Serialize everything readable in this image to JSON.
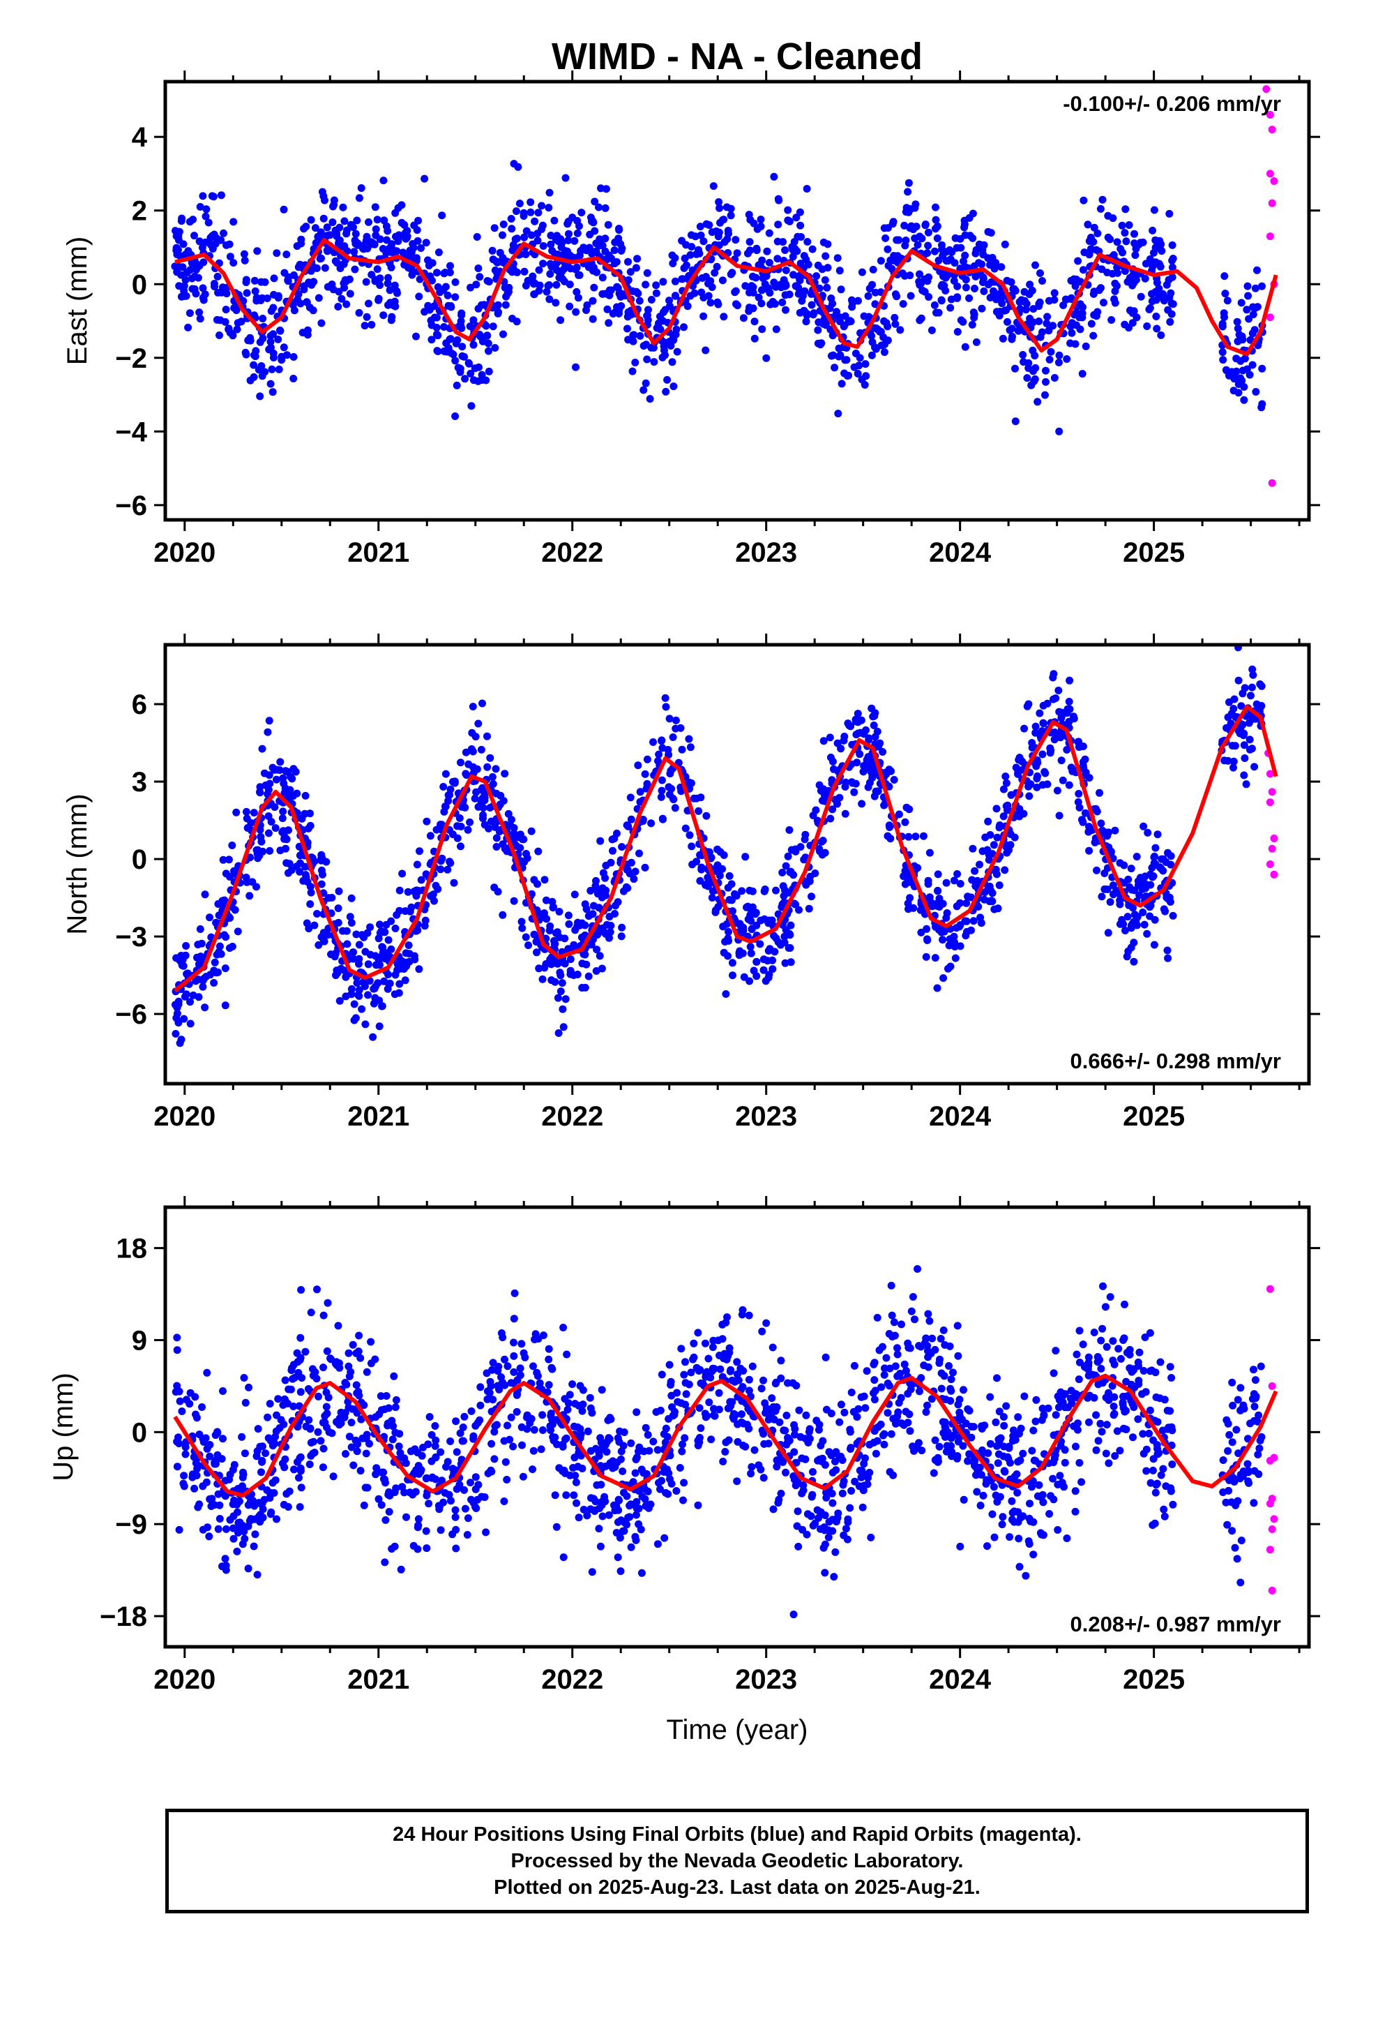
{
  "title": "WIMD  - NA - Cleaned",
  "x_axis_title": "Time (year)",
  "footer": {
    "line1": "24 Hour Positions Using Final Orbits (blue) and Rapid Orbits (magenta).",
    "line2": "Processed by the Nevada Geodetic Laboratory.",
    "line3": "Plotted on 2025-Aug-23. Last data on 2025-Aug-21."
  },
  "colors": {
    "final": "#0000ff",
    "rapid": "#ff00ff",
    "model": "#ff0000",
    "frame": "#000000"
  },
  "chart_data": [
    {
      "type": "scatter",
      "ylabel": "East (mm)",
      "rate_text": "-0.100+/- 0.206 mm/yr",
      "rate_position": "top-right",
      "xlim": [
        2019.9,
        2025.8
      ],
      "ylim": [
        -6.4,
        5.5
      ],
      "x_ticks": [
        2020,
        2021,
        2022,
        2023,
        2024,
        2025
      ],
      "x_tick_labels": [
        "2020",
        "2021",
        "2022",
        "2023",
        "2024",
        "2025"
      ],
      "y_ticks": [
        -6,
        -4,
        -2,
        0,
        2,
        4
      ],
      "y_tick_labels": [
        "−6",
        "−4",
        "−2",
        "0",
        "2",
        "4"
      ],
      "model": {
        "name": "",
        "points": [
          [
            2019.95,
            0.6
          ],
          [
            2020.1,
            0.8
          ],
          [
            2020.2,
            0.3
          ],
          [
            2020.3,
            -0.7
          ],
          [
            2020.4,
            -1.3
          ],
          [
            2020.5,
            -0.9
          ],
          [
            2020.6,
            0.2
          ],
          [
            2020.72,
            1.2
          ],
          [
            2020.85,
            0.7
          ],
          [
            2021.0,
            0.6
          ],
          [
            2021.1,
            0.75
          ],
          [
            2021.2,
            0.5
          ],
          [
            2021.3,
            -0.4
          ],
          [
            2021.4,
            -1.3
          ],
          [
            2021.47,
            -1.5
          ],
          [
            2021.55,
            -0.9
          ],
          [
            2021.65,
            0.4
          ],
          [
            2021.75,
            1.1
          ],
          [
            2021.87,
            0.75
          ],
          [
            2022.0,
            0.6
          ],
          [
            2022.13,
            0.7
          ],
          [
            2022.25,
            0.2
          ],
          [
            2022.33,
            -0.8
          ],
          [
            2022.42,
            -1.6
          ],
          [
            2022.5,
            -1.2
          ],
          [
            2022.6,
            0.0
          ],
          [
            2022.73,
            1.0
          ],
          [
            2022.85,
            0.5
          ],
          [
            2023.0,
            0.35
          ],
          [
            2023.12,
            0.6
          ],
          [
            2023.22,
            0.2
          ],
          [
            2023.3,
            -0.7
          ],
          [
            2023.4,
            -1.6
          ],
          [
            2023.47,
            -1.7
          ],
          [
            2023.55,
            -1.0
          ],
          [
            2023.65,
            0.2
          ],
          [
            2023.75,
            0.9
          ],
          [
            2023.87,
            0.5
          ],
          [
            2024.0,
            0.3
          ],
          [
            2024.12,
            0.4
          ],
          [
            2024.22,
            0.0
          ],
          [
            2024.3,
            -0.9
          ],
          [
            2024.42,
            -1.8
          ],
          [
            2024.5,
            -1.5
          ],
          [
            2024.6,
            -0.4
          ],
          [
            2024.72,
            0.8
          ],
          [
            2024.85,
            0.5
          ],
          [
            2025.0,
            0.25
          ],
          [
            2025.12,
            0.35
          ],
          [
            2025.22,
            -0.1
          ],
          [
            2025.3,
            -1.0
          ],
          [
            2025.38,
            -1.7
          ],
          [
            2025.48,
            -1.9
          ],
          [
            2025.55,
            -1.3
          ],
          [
            2025.63,
            0.25
          ]
        ]
      },
      "final_series": {
        "name": "",
        "amplitude": 1.0,
        "noise": 0.85,
        "segments": [
          [
            2019.95,
            2025.1
          ],
          [
            2025.35,
            2025.56
          ]
        ],
        "n": 1750
      },
      "rapid_points": [
        [
          2025.58,
          5.3
        ],
        [
          2025.6,
          4.6
        ],
        [
          2025.61,
          4.2
        ],
        [
          2025.6,
          3.0
        ],
        [
          2025.62,
          2.8
        ],
        [
          2025.61,
          2.2
        ],
        [
          2025.6,
          1.3
        ],
        [
          2025.62,
          0.0
        ],
        [
          2025.6,
          -0.9
        ],
        [
          2025.61,
          -5.4
        ]
      ]
    },
    {
      "type": "scatter",
      "ylabel": "North (mm)",
      "rate_text": "0.666+/- 0.298 mm/yr",
      "rate_position": "bottom-right",
      "xlim": [
        2019.9,
        2025.8
      ],
      "ylim": [
        -8.7,
        8.3
      ],
      "x_ticks": [
        2020,
        2021,
        2022,
        2023,
        2024,
        2025
      ],
      "x_tick_labels": [
        "2020",
        "2021",
        "2022",
        "2023",
        "2024",
        "2025"
      ],
      "y_ticks": [
        -6,
        -3,
        0,
        3,
        6
      ],
      "y_tick_labels": [
        "−6",
        "−3",
        "0",
        "3",
        "6"
      ],
      "model": {
        "name": "",
        "points": [
          [
            2019.95,
            -5.1
          ],
          [
            2020.1,
            -4.2
          ],
          [
            2020.25,
            -1.3
          ],
          [
            2020.4,
            2.0
          ],
          [
            2020.47,
            2.6
          ],
          [
            2020.55,
            2.0
          ],
          [
            2020.7,
            -1.5
          ],
          [
            2020.85,
            -4.3
          ],
          [
            2020.93,
            -4.6
          ],
          [
            2021.05,
            -4.2
          ],
          [
            2021.2,
            -2.3
          ],
          [
            2021.35,
            1.3
          ],
          [
            2021.48,
            3.2
          ],
          [
            2021.55,
            3.0
          ],
          [
            2021.7,
            0.2
          ],
          [
            2021.85,
            -3.3
          ],
          [
            2021.93,
            -3.8
          ],
          [
            2022.05,
            -3.5
          ],
          [
            2022.2,
            -1.5
          ],
          [
            2022.35,
            1.8
          ],
          [
            2022.48,
            3.9
          ],
          [
            2022.55,
            3.5
          ],
          [
            2022.7,
            -0.2
          ],
          [
            2022.85,
            -3.0
          ],
          [
            2022.92,
            -3.2
          ],
          [
            2023.05,
            -2.7
          ],
          [
            2023.2,
            -0.5
          ],
          [
            2023.35,
            2.8
          ],
          [
            2023.48,
            4.6
          ],
          [
            2023.55,
            4.3
          ],
          [
            2023.7,
            0.5
          ],
          [
            2023.85,
            -2.3
          ],
          [
            2023.93,
            -2.6
          ],
          [
            2024.05,
            -2.0
          ],
          [
            2024.2,
            0.3
          ],
          [
            2024.35,
            3.6
          ],
          [
            2024.48,
            5.3
          ],
          [
            2024.55,
            5.0
          ],
          [
            2024.7,
            1.2
          ],
          [
            2024.85,
            -1.5
          ],
          [
            2024.93,
            -1.8
          ],
          [
            2025.05,
            -1.2
          ],
          [
            2025.2,
            1.0
          ],
          [
            2025.35,
            4.3
          ],
          [
            2025.48,
            5.9
          ],
          [
            2025.55,
            5.5
          ],
          [
            2025.63,
            3.2
          ]
        ]
      },
      "final_series": {
        "name": "",
        "amplitude": 1.0,
        "noise": 1.1,
        "segments": [
          [
            2019.95,
            2025.1
          ],
          [
            2025.35,
            2025.56
          ]
        ],
        "n": 1750
      },
      "rapid_points": [
        [
          2025.59,
          4.1
        ],
        [
          2025.6,
          3.3
        ],
        [
          2025.61,
          2.6
        ],
        [
          2025.6,
          2.2
        ],
        [
          2025.62,
          0.8
        ],
        [
          2025.61,
          0.4
        ],
        [
          2025.6,
          -0.2
        ],
        [
          2025.62,
          -0.6
        ]
      ]
    },
    {
      "type": "scatter",
      "ylabel": "Up (mm)",
      "rate_text": "0.208+/- 0.987 mm/yr",
      "rate_position": "bottom-right",
      "xlim": [
        2019.9,
        2025.8
      ],
      "ylim": [
        -21,
        22
      ],
      "x_ticks": [
        2020,
        2021,
        2022,
        2023,
        2024,
        2025
      ],
      "x_tick_labels": [
        "2020",
        "2021",
        "2022",
        "2023",
        "2024",
        "2025"
      ],
      "y_ticks": [
        -18,
        -9,
        0,
        9,
        18
      ],
      "y_tick_labels": [
        "−18",
        "−9",
        "0",
        "9",
        "18"
      ],
      "model": {
        "name": "",
        "points": [
          [
            2019.95,
            1.5
          ],
          [
            2020.1,
            -3.0
          ],
          [
            2020.22,
            -5.8
          ],
          [
            2020.3,
            -6.2
          ],
          [
            2020.42,
            -4.5
          ],
          [
            2020.55,
            0.5
          ],
          [
            2020.68,
            4.3
          ],
          [
            2020.75,
            4.8
          ],
          [
            2020.88,
            3.0
          ],
          [
            2021.0,
            -0.5
          ],
          [
            2021.15,
            -4.3
          ],
          [
            2021.28,
            -5.8
          ],
          [
            2021.4,
            -4.5
          ],
          [
            2021.55,
            0.3
          ],
          [
            2021.68,
            4.0
          ],
          [
            2021.75,
            4.8
          ],
          [
            2021.88,
            3.2
          ],
          [
            2022.0,
            -0.3
          ],
          [
            2022.15,
            -4.3
          ],
          [
            2022.3,
            -5.6
          ],
          [
            2022.42,
            -4.3
          ],
          [
            2022.55,
            0.5
          ],
          [
            2022.7,
            4.5
          ],
          [
            2022.77,
            5.0
          ],
          [
            2022.9,
            3.3
          ],
          [
            2023.05,
            -1.0
          ],
          [
            2023.18,
            -4.5
          ],
          [
            2023.3,
            -5.5
          ],
          [
            2023.42,
            -3.8
          ],
          [
            2023.55,
            1.0
          ],
          [
            2023.68,
            4.8
          ],
          [
            2023.75,
            5.3
          ],
          [
            2023.88,
            3.5
          ],
          [
            2024.05,
            -1.3
          ],
          [
            2024.18,
            -4.5
          ],
          [
            2024.3,
            -5.3
          ],
          [
            2024.42,
            -3.5
          ],
          [
            2024.55,
            1.0
          ],
          [
            2024.68,
            5.0
          ],
          [
            2024.75,
            5.5
          ],
          [
            2024.88,
            4.0
          ],
          [
            2025.05,
            -1.0
          ],
          [
            2025.2,
            -4.8
          ],
          [
            2025.3,
            -5.3
          ],
          [
            2025.42,
            -3.5
          ],
          [
            2025.55,
            0.5
          ],
          [
            2025.63,
            4.0
          ]
        ]
      },
      "final_series": {
        "name": "",
        "amplitude": 1.0,
        "noise": 4.0,
        "segments": [
          [
            2019.95,
            2025.1
          ],
          [
            2025.35,
            2025.56
          ]
        ],
        "n": 1750
      },
      "rapid_points": [
        [
          2025.6,
          14.0
        ],
        [
          2025.61,
          4.5
        ],
        [
          2025.62,
          -2.5
        ],
        [
          2025.6,
          -2.8
        ],
        [
          2025.61,
          -6.5
        ],
        [
          2025.6,
          -7.0
        ],
        [
          2025.62,
          -8.5
        ],
        [
          2025.61,
          -9.5
        ],
        [
          2025.6,
          -11.5
        ],
        [
          2025.61,
          -15.5
        ]
      ]
    }
  ]
}
